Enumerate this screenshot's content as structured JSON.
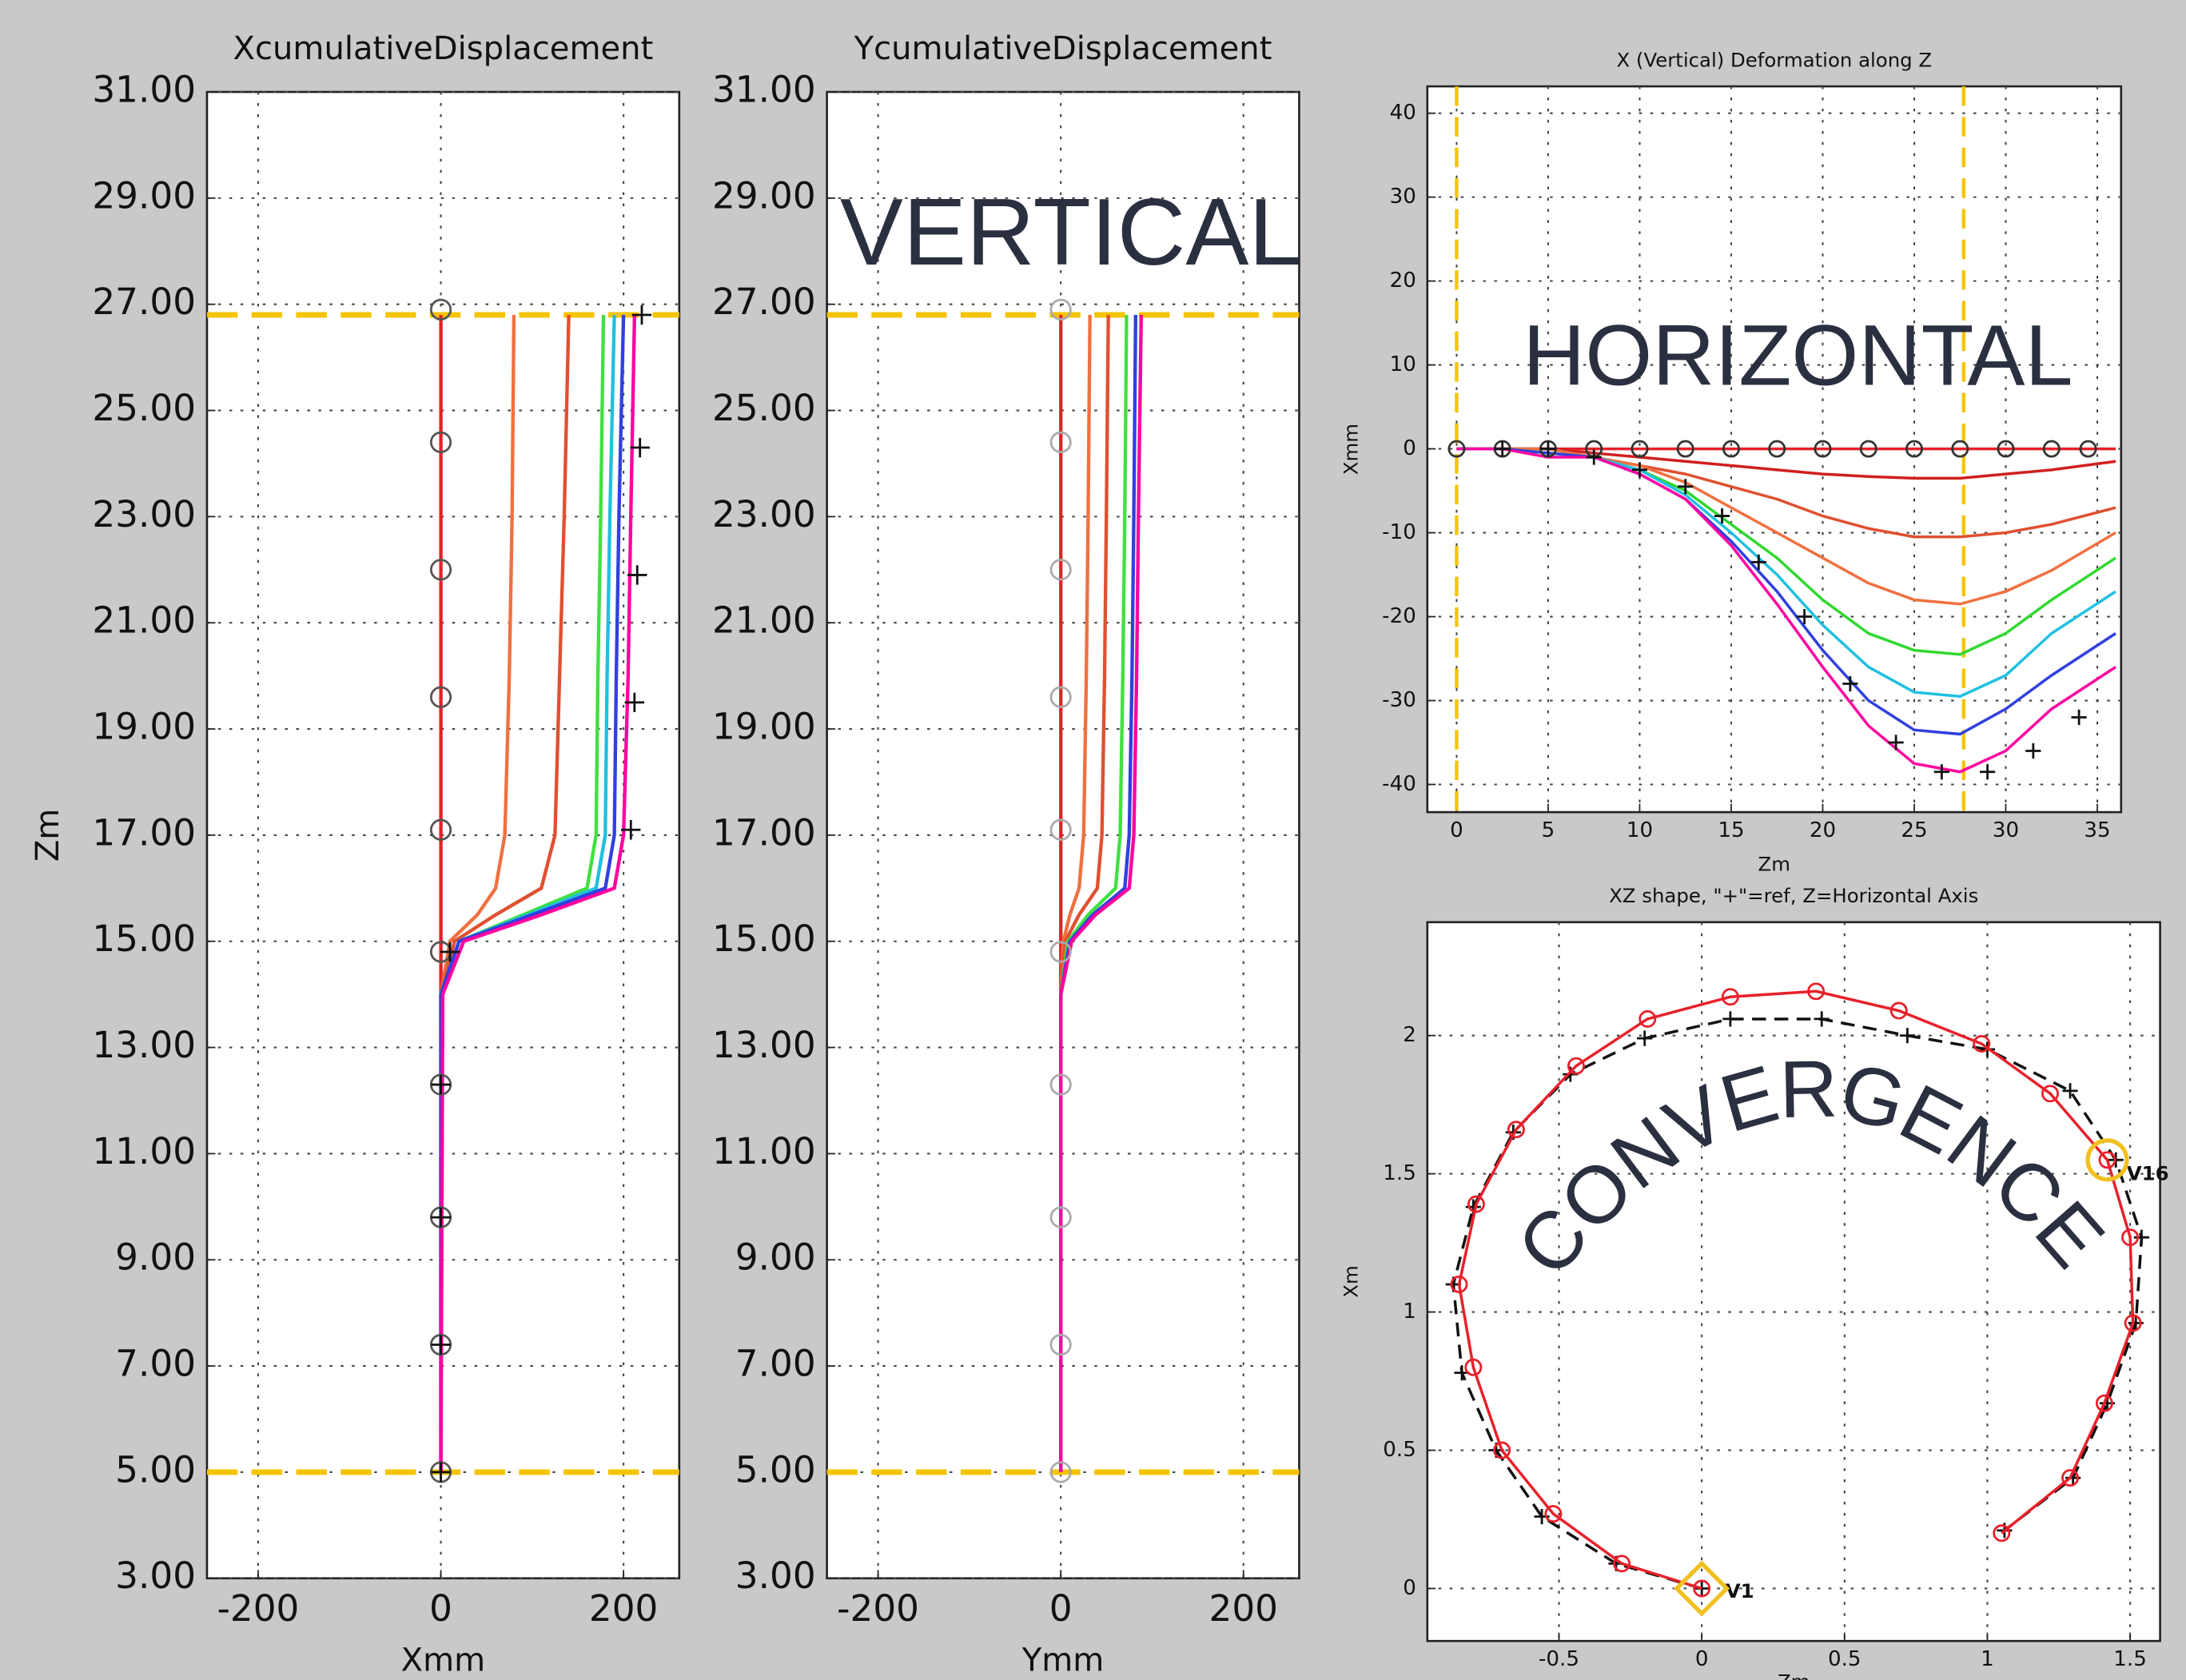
{
  "chart_data": [
    {
      "type": "line",
      "title": "XcumulativeDisplacement",
      "xlabel": "Xmm",
      "ylabel": "Zm",
      "xlim": [
        -256,
        261
      ],
      "ylim": [
        3,
        31
      ],
      "xticks": [
        -200,
        0,
        200
      ],
      "yticks": [
        {
          "value": 3,
          "label": "3.00"
        },
        {
          "value": 5,
          "label": "5.00"
        },
        {
          "value": 7,
          "label": "7.00"
        },
        {
          "value": 9,
          "label": "9.00"
        },
        {
          "value": 11,
          "label": "11.00"
        },
        {
          "value": 13,
          "label": "13.00"
        },
        {
          "value": 15,
          "label": "15.00"
        },
        {
          "value": 17,
          "label": "17.00"
        },
        {
          "value": 19,
          "label": "19.00"
        },
        {
          "value": 21,
          "label": "21.00"
        },
        {
          "value": 23,
          "label": "23.00"
        },
        {
          "value": 25,
          "label": "25.00"
        },
        {
          "value": 27,
          "label": "27.00"
        },
        {
          "value": 29,
          "label": "29.00"
        },
        {
          "value": 31,
          "label": "31.00"
        }
      ],
      "grid": true,
      "hlines": [
        26.8,
        5
      ],
      "ref_color": "#f5c400",
      "y": [
        5,
        14,
        15,
        15.5,
        16,
        17,
        20,
        23,
        26.8
      ],
      "series": [
        {
          "color": "#e8202a",
          "x": [
            0,
            0,
            0,
            0,
            0,
            0,
            0,
            0,
            0
          ]
        },
        {
          "color": "#f07040",
          "x": [
            0,
            0,
            10,
            40,
            60,
            70,
            75,
            78,
            80
          ]
        },
        {
          "color": "#e05030",
          "x": [
            0,
            0,
            15,
            60,
            110,
            125,
            130,
            135,
            140
          ]
        },
        {
          "color": "#40e040",
          "x": [
            0,
            0,
            20,
            90,
            160,
            170,
            172,
            175,
            178
          ]
        },
        {
          "color": "#20c0e0",
          "x": [
            0,
            0,
            20,
            95,
            170,
            180,
            182,
            185,
            190
          ]
        },
        {
          "color": "#3040e0",
          "x": [
            0,
            0,
            20,
            100,
            180,
            190,
            192,
            195,
            200
          ]
        },
        {
          "color": "#ff00a0",
          "x": [
            0,
            2,
            25,
            110,
            190,
            200,
            205,
            208,
            212
          ]
        },
        {
          "color": "#555555",
          "line": false,
          "marker": "circle",
          "x": [
            0,
            0,
            0,
            0,
            0,
            0,
            0,
            0,
            0,
            0
          ],
          "y": [
            26.9,
            24.4,
            22,
            19.6,
            17.1,
            14.8,
            12.3,
            9.8,
            7.4,
            5
          ]
        },
        {
          "color": "#111111",
          "line": false,
          "marker": "plus",
          "x": [
            220,
            218,
            215,
            212,
            208,
            10,
            0,
            0,
            0,
            0
          ],
          "y": [
            26.8,
            24.3,
            21.9,
            19.5,
            17.1,
            14.8,
            12.3,
            9.8,
            7.4,
            5
          ]
        }
      ]
    },
    {
      "type": "line",
      "title": "YcumulativeDisplacement",
      "xlabel": "Ymm",
      "ylabel": null,
      "xlim": [
        -256,
        261
      ],
      "ylim": [
        3,
        31
      ],
      "xticks": [
        -200,
        0,
        200
      ],
      "yticks": [
        {
          "value": 3,
          "label": "3.00"
        },
        {
          "value": 5,
          "label": "5.00"
        },
        {
          "value": 7,
          "label": "7.00"
        },
        {
          "value": 9,
          "label": "9.00"
        },
        {
          "value": 11,
          "label": "11.00"
        },
        {
          "value": 13,
          "label": "13.00"
        },
        {
          "value": 15,
          "label": "15.00"
        },
        {
          "value": 17,
          "label": "17.00"
        },
        {
          "value": 19,
          "label": "19.00"
        },
        {
          "value": 21,
          "label": "21.00"
        },
        {
          "value": 23,
          "label": "23.00"
        },
        {
          "value": 25,
          "label": "25.00"
        },
        {
          "value": 27,
          "label": "27.00"
        },
        {
          "value": 29,
          "label": "29.00"
        },
        {
          "value": 31,
          "label": "31.00"
        }
      ],
      "grid": true,
      "hlines": [
        26.8,
        5
      ],
      "ref_color": "#f5c400",
      "annotations": [
        "VERTICAL"
      ],
      "y": [
        5,
        14,
        15,
        15.5,
        16,
        17,
        20,
        23,
        26.8
      ],
      "series": [
        {
          "color": "#e8202a",
          "x": [
            0,
            0,
            0,
            0,
            0,
            0,
            0,
            0,
            0
          ]
        },
        {
          "color": "#f07040",
          "x": [
            0,
            0,
            3,
            10,
            20,
            25,
            28,
            30,
            32
          ]
        },
        {
          "color": "#e05030",
          "x": [
            0,
            0,
            5,
            20,
            40,
            45,
            48,
            50,
            52
          ]
        },
        {
          "color": "#40e040",
          "x": [
            0,
            0,
            8,
            30,
            60,
            65,
            68,
            70,
            72
          ]
        },
        {
          "color": "#3040e0",
          "x": [
            0,
            0,
            10,
            35,
            70,
            75,
            78,
            80,
            82
          ]
        },
        {
          "color": "#ff00a0",
          "x": [
            0,
            0,
            12,
            38,
            75,
            80,
            83,
            85,
            88
          ]
        },
        {
          "color": "#aaaaaa",
          "line": false,
          "marker": "circle",
          "x": [
            0,
            0,
            0,
            0,
            0,
            0,
            0,
            0,
            0,
            0
          ],
          "y": [
            26.9,
            24.4,
            22,
            19.6,
            17.1,
            14.8,
            12.3,
            9.8,
            7.4,
            5
          ]
        }
      ]
    },
    {
      "type": "line",
      "title": "X (Vertical) Deformation along Z",
      "xlabel": "Zm",
      "ylabel": "Xmm",
      "xlim": [
        -1.6,
        36.3
      ],
      "ylim": [
        -43.3,
        43.2
      ],
      "xticks": [
        0,
        5,
        10,
        15,
        20,
        25,
        30,
        35
      ],
      "yticks": [
        -40,
        -30,
        -20,
        -10,
        0,
        10,
        20,
        30,
        40
      ],
      "grid": true,
      "vlines": [
        0,
        27.7
      ],
      "ref_color": "#f5c400",
      "annotations": [
        "HORIZONTAL"
      ],
      "x": [
        0,
        2.5,
        5,
        7.5,
        10,
        12.5,
        15,
        17.5,
        20,
        22.5,
        25,
        27.5,
        30,
        32.5,
        36
      ],
      "series": [
        {
          "color": "#e8202a",
          "y": [
            0,
            0,
            0,
            0,
            0,
            0,
            0,
            0,
            0,
            0,
            0,
            0,
            0,
            0,
            0
          ]
        },
        {
          "color": "#d02020",
          "y": [
            0,
            0,
            0,
            -0.5,
            -1,
            -1.5,
            -2,
            -2.5,
            -3,
            -3.3,
            -3.5,
            -3.5,
            -3,
            -2.5,
            -1.5
          ]
        },
        {
          "color": "#e05030",
          "y": [
            0,
            0,
            0,
            -1,
            -2,
            -3,
            -4.5,
            -6,
            -8,
            -9.5,
            -10.5,
            -10.5,
            -10,
            -9,
            -7
          ]
        },
        {
          "color": "#f07040",
          "y": [
            0,
            0,
            0,
            -1,
            -2,
            -4,
            -7,
            -10,
            -13,
            -16,
            -18,
            -18.5,
            -17,
            -14.5,
            -10
          ]
        },
        {
          "color": "#30d830",
          "y": [
            0,
            0,
            -0.5,
            -1,
            -2.5,
            -5,
            -9,
            -13,
            -18,
            -22,
            -24,
            -24.5,
            -22,
            -18,
            -13
          ]
        },
        {
          "color": "#20c0e0",
          "y": [
            0,
            0,
            -0.5,
            -1,
            -2.5,
            -5.5,
            -10,
            -15,
            -21,
            -26,
            -29,
            -29.5,
            -27,
            -22,
            -17
          ]
        },
        {
          "color": "#3040e0",
          "y": [
            0,
            0,
            -0.5,
            -1,
            -3,
            -6,
            -11,
            -17,
            -24,
            -30,
            -33.5,
            -34,
            -31,
            -27,
            -22
          ]
        },
        {
          "color": "#ff00a0",
          "y": [
            0,
            0,
            -1,
            -1,
            -3,
            -6,
            -11.5,
            -18.5,
            -26,
            -33,
            -37.5,
            -38.5,
            -36,
            -31,
            -26
          ]
        },
        {
          "color": "#333333",
          "line": false,
          "marker": "circle",
          "x": [
            0,
            2.5,
            5,
            7.5,
            10,
            12.5,
            15,
            17.5,
            20,
            22.5,
            25,
            27.5,
            30,
            32.5,
            34.5
          ],
          "y": [
            0,
            0,
            0,
            0,
            0,
            0,
            0,
            0,
            0,
            0,
            0,
            0,
            0,
            0,
            0
          ]
        },
        {
          "color": "#111111",
          "line": false,
          "marker": "plus",
          "x": [
            2.5,
            5,
            7.5,
            10,
            12.5,
            14.5,
            16.5,
            19,
            21.5,
            24,
            26.5,
            29,
            31.5,
            34
          ],
          "y": [
            0,
            0,
            -1,
            -2.5,
            -4.5,
            -8,
            -13.5,
            -20,
            -28,
            -35,
            -38.5,
            -38.5,
            -36,
            -32
          ]
        }
      ]
    },
    {
      "type": "line",
      "title": "XZ shape, \"+\"=ref, Z=Horizontal Axis",
      "xlabel": "Zm",
      "ylabel": "Xm",
      "xlim": [
        -0.961,
        1.605
      ],
      "ylim": [
        -0.19,
        2.41
      ],
      "xticks": [
        -0.5,
        0,
        0.5,
        1,
        1.5
      ],
      "yticks": [
        0,
        0.5,
        1,
        1.5,
        2
      ],
      "grid": true,
      "annotations": [
        "CONVERGENCE",
        "V1",
        "V16"
      ],
      "series": [
        {
          "color": "#111111",
          "dashed": true,
          "marker": "plus",
          "x": [
            0,
            -0.3,
            -0.56,
            -0.72,
            -0.84,
            -0.87,
            -0.8,
            -0.66,
            -0.46,
            -0.2,
            0.1,
            0.42,
            0.72,
            1,
            1.29,
            1.45,
            1.54,
            1.52,
            1.42,
            1.3,
            1.06
          ],
          "y": [
            0,
            0.09,
            0.26,
            0.5,
            0.78,
            1.1,
            1.38,
            1.65,
            1.86,
            1.99,
            2.06,
            2.06,
            2,
            1.95,
            1.8,
            1.55,
            1.27,
            0.96,
            0.67,
            0.4,
            0.21
          ]
        },
        {
          "color": "#e8202a",
          "marker": "circle",
          "x": [
            0,
            -0.28,
            -0.52,
            -0.7,
            -0.8,
            -0.85,
            -0.79,
            -0.65,
            -0.44,
            -0.19,
            0.1,
            0.4,
            0.69,
            0.98,
            1.22,
            1.42,
            1.5,
            1.51,
            1.41,
            1.29,
            1.05
          ],
          "y": [
            0,
            0.09,
            0.27,
            0.5,
            0.8,
            1.1,
            1.39,
            1.66,
            1.89,
            2.06,
            2.14,
            2.16,
            2.09,
            1.97,
            1.79,
            1.55,
            1.27,
            0.96,
            0.67,
            0.4,
            0.2
          ]
        }
      ]
    }
  ]
}
